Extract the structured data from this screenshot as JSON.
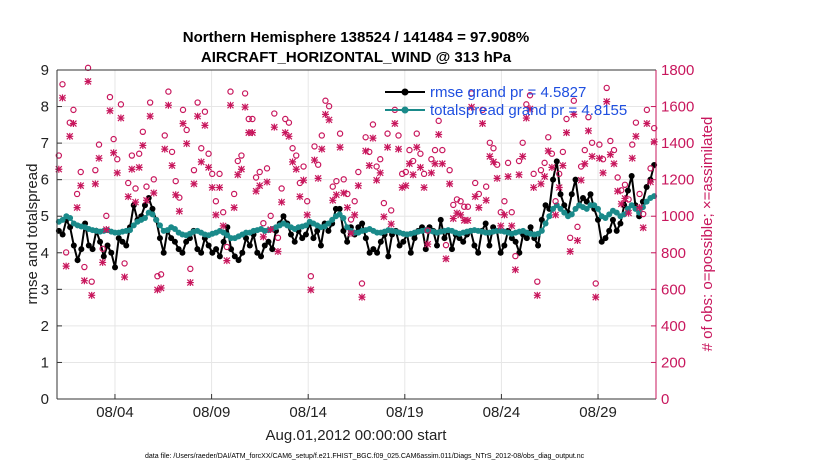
{
  "chart_data": {
    "type": "line",
    "title": "Northern Hemisphere 138524 / 141484 = 97.908%",
    "subtitle": "AIRCRAFT_HORIZONTAL_WIND @ 313 hPa",
    "xlabel": "Aug.01,2012 00:00:00 start",
    "ylabel": "rmse and totalspread",
    "ylabel_right": "# of obs: o=possible; ×=assimilated",
    "x_tick_labels": [
      "08/04",
      "08/09",
      "08/14",
      "08/19",
      "08/24",
      "08/29"
    ],
    "x_tick_days": [
      4,
      9,
      14,
      19,
      24,
      29
    ],
    "xlim_days": [
      1,
      32
    ],
    "ylim": [
      0,
      9
    ],
    "y_ticks": [
      0,
      1,
      2,
      3,
      4,
      5,
      6,
      7,
      8,
      9
    ],
    "ylim_right": [
      0,
      1800
    ],
    "y_ticks_right": [
      0,
      200,
      400,
      600,
      800,
      1000,
      1200,
      1400,
      1600,
      1800
    ],
    "grid": true,
    "legend_position": "top-right",
    "legend": [
      {
        "label": "rmse grand pr = 4.5827",
        "color": "#000000"
      },
      {
        "label": "totalspread grand pr = 4.8155",
        "color": "#1a8a8a"
      }
    ],
    "series": [
      {
        "name": "rmse",
        "color": "#000000",
        "values": [
          4.6,
          4.5,
          4.9,
          4.7,
          4.2,
          3.8,
          4.1,
          4.8,
          4.2,
          4.1,
          4.6,
          4.3,
          3.9,
          4.2,
          4.0,
          3.6,
          4.4,
          4.3,
          4.2,
          4.7,
          5.3,
          4.9,
          5.0,
          5.3,
          5.5,
          5.2,
          4.9,
          4.4,
          4.0,
          4.6,
          4.4,
          4.3,
          4.1,
          4.0,
          4.3,
          4.4,
          4.6,
          4.1,
          4.0,
          4.4,
          4.2,
          4.0,
          4.1,
          3.9,
          4.3,
          4.7,
          4.1,
          3.9,
          3.8,
          4.0,
          4.4,
          4.2,
          4.5,
          4.0,
          3.9,
          4.2,
          4.3,
          4.1,
          4.6,
          4.8,
          5.0,
          4.8,
          4.5,
          4.3,
          4.6,
          4.4,
          4.5,
          4.8,
          4.4,
          4.6,
          4.2,
          4.8,
          4.6,
          4.8,
          5.2,
          5.2,
          4.6,
          4.3,
          4.7,
          4.5,
          4.7,
          4.8,
          4.4,
          4.0,
          4.1,
          4.0,
          4.3,
          4.5,
          3.9,
          4.5,
          4.6,
          4.2,
          4.3,
          4.5,
          4.0,
          4.4,
          4.6,
          4.7,
          4.1,
          4.7,
          4.6,
          4.2,
          4.9,
          4.4,
          4.6,
          4.1,
          4.5,
          4.4,
          4.3,
          4.5,
          4.6,
          4.2,
          4.0,
          4.6,
          4.8,
          4.2,
          4.7,
          4.6,
          4.0,
          4.2,
          4.6,
          4.4,
          4.3,
          4.0,
          4.5,
          4.4,
          4.7,
          4.4,
          4.2,
          4.9,
          5.3,
          5.2,
          6.0,
          6.5,
          5.6,
          5.3,
          5.1,
          5.6,
          6.0,
          5.3,
          5.5,
          5.4,
          5.6,
          5.2,
          4.9,
          4.3,
          4.4,
          4.6,
          4.9,
          4.6,
          4.8,
          5.3,
          5.7,
          6.1,
          5.3,
          5.0,
          5.4,
          5.8,
          6.0,
          6.4
        ],
        "dash": "solid",
        "marker": "dot"
      },
      {
        "name": "totalspread",
        "color": "#1a8a8a",
        "values": [
          4.85,
          4.9,
          5.0,
          4.95,
          4.8,
          4.75,
          4.72,
          4.7,
          4.65,
          4.62,
          4.6,
          4.58,
          4.6,
          4.62,
          4.58,
          4.55,
          4.55,
          4.58,
          4.6,
          4.62,
          4.75,
          4.85,
          4.9,
          4.95,
          5.1,
          5.05,
          4.9,
          4.75,
          4.6,
          4.62,
          4.7,
          4.65,
          4.55,
          4.5,
          4.48,
          4.52,
          4.58,
          4.6,
          4.55,
          4.5,
          4.48,
          4.52,
          4.55,
          4.6,
          4.55,
          4.48,
          4.4,
          4.4,
          4.45,
          4.5,
          4.55,
          4.55,
          4.6,
          4.62,
          4.65,
          4.6,
          4.62,
          4.65,
          4.7,
          4.75,
          4.8,
          4.75,
          4.7,
          4.65,
          4.7,
          4.72,
          4.75,
          4.85,
          4.8,
          4.75,
          4.7,
          4.72,
          4.8,
          4.9,
          5.0,
          5.05,
          4.95,
          4.7,
          4.6,
          4.55,
          4.55,
          4.6,
          4.62,
          4.65,
          4.6,
          4.55,
          4.55,
          4.58,
          4.62,
          4.6,
          4.58,
          4.55,
          4.52,
          4.5,
          4.52,
          4.55,
          4.58,
          4.6,
          4.62,
          4.6,
          4.58,
          4.55,
          4.58,
          4.6,
          4.62,
          4.6,
          4.55,
          4.52,
          4.55,
          4.58,
          4.6,
          4.62,
          4.6,
          4.58,
          4.55,
          4.55,
          4.58,
          4.6,
          4.6,
          4.58,
          4.55,
          4.52,
          4.55,
          4.58,
          4.6,
          4.55,
          4.52,
          4.5,
          4.52,
          4.6,
          4.8,
          5.0,
          5.2,
          5.3,
          5.2,
          5.1,
          5.0,
          5.05,
          5.2,
          5.3,
          5.25,
          5.2,
          5.3,
          5.3,
          5.2,
          5.0,
          4.95,
          5.05,
          5.15,
          5.1,
          5.0,
          5.05,
          5.2,
          5.3,
          5.2,
          5.1,
          5.25,
          5.4,
          5.5,
          5.55
        ],
        "dash": "solid",
        "marker": "dot"
      },
      {
        "name": "# obs possible",
        "axis": "right",
        "color": "#c8175d",
        "marker": "circle",
        "values": [
          1310,
          1700,
          780,
          1490,
          1560,
          1100,
          1220,
          700,
          1790,
          620,
          1230,
          1370,
          800,
          980,
          1630,
          1400,
          1290,
          1590,
          720,
          1160,
          1310,
          1130,
          1320,
          1440,
          1140,
          1600,
          1180,
          650,
          660,
          1420,
          1660,
          1330,
          1170,
          1080,
          1560,
          1450,
          690,
          1230,
          1600,
          1350,
          1550,
          1320,
          1210,
          1060,
          1210,
          1000,
          810,
          1660,
          1100,
          1280,
          1310,
          1650,
          1510,
          1510,
          1190,
          1220,
          940,
          1240,
          980,
          1540,
          860,
          1130,
          1510,
          1490,
          1350,
          1310,
          1160,
          1250,
          1060,
          650,
          1360,
          1260,
          1420,
          1610,
          1580,
          1140,
          1170,
          1430,
          1180,
          1100,
          960,
          1060,
          1220,
          610,
          1410,
          1330,
          1480,
          1250,
          1290,
          1050,
          1430,
          1010,
          1560,
          1420,
          1210,
          1220,
          1340,
          1280,
          1430,
          1320,
          1210,
          900,
          1290,
          1340,
          1500,
          1340,
          820,
          1230,
          1040,
          1070,
          1060,
          1030,
          1030,
          1650,
          1160,
          1100,
          1560,
          1140,
          1380,
          1350,
          1260,
          1000,
          1060,
          1270,
          1000,
          760,
          1280,
          1380,
          1590,
          1640,
          1210,
          620,
          1230,
          1270,
          1410,
          1320,
          1060,
          1210,
          1330,
          1510,
          860,
          1610,
          920,
          1250,
          1340,
          1520,
          1380,
          610,
          1370,
          1290,
          1680,
          1390,
          1340,
          1190,
          1120,
          1150,
          1070,
          1370,
          1490,
          1100,
          990,
          1560,
          1240,
          1460
        ],
        "dash": "none"
      },
      {
        "name": "# obs assimilated",
        "axis": "right",
        "color": "#c8175d",
        "marker": "x",
        "values": [
          1290,
          1680,
          760,
          1470,
          1540,
          1080,
          1200,
          680,
          1770,
          600,
          1210,
          1350,
          780,
          960,
          1610,
          1380,
          1270,
          1570,
          700,
          1140,
          1290,
          1110,
          1300,
          1420,
          1120,
          1580,
          1160,
          630,
          640,
          1400,
          1640,
          1310,
          1150,
          1060,
          1540,
          1430,
          670,
          1210,
          1580,
          1330,
          1530,
          1300,
          1190,
          1040,
          1190,
          980,
          790,
          1640,
          1080,
          1260,
          1290,
          1630,
          1490,
          1490,
          1170,
          1200,
          920,
          1220,
          960,
          1520,
          840,
          1110,
          1490,
          1470,
          1330,
          1290,
          1140,
          1230,
          1040,
          630,
          1340,
          1240,
          1400,
          1590,
          1560,
          1120,
          1150,
          1410,
          1160,
          1080,
          940,
          1040,
          1200,
          590,
          1390,
          1310,
          1460,
          1230,
          1270,
          1030,
          1410,
          990,
          1540,
          1400,
          1190,
          1200,
          1320,
          1260,
          1410,
          1300,
          1190,
          880,
          1270,
          1320,
          1480,
          1320,
          800,
          1210,
          1020,
          1050,
          1040,
          1010,
          1010,
          1630,
          1140,
          1080,
          1540,
          1120,
          1360,
          1330,
          1240,
          980,
          1040,
          1250,
          980,
          740,
          1260,
          1360,
          1570,
          1620,
          1190,
          600,
          1210,
          1250,
          1390,
          1300,
          1040,
          1190,
          1310,
          1490,
          840,
          1590,
          900,
          1230,
          1320,
          1500,
          1360,
          590,
          1350,
          1270,
          1660,
          1370,
          1320,
          1170,
          1100,
          1130,
          1050,
          1350,
          1470,
          1080,
          970,
          1540,
          1220,
          1440
        ],
        "dash": "none"
      }
    ]
  },
  "footer": "data file: /Users/raeder/DAI/ATM_forcXX/CAM6_setup/f.e21.FHIST_BGC.f09_025.CAM6assim.011/Diags_NTrS_2012-08/obs_diag_output.nc",
  "colors": {
    "rmse": "#000000",
    "spread": "#1a8a8a",
    "obs": "#c8175d",
    "legend_text": "#1f4fe0",
    "grid": "#e6e6e6"
  }
}
